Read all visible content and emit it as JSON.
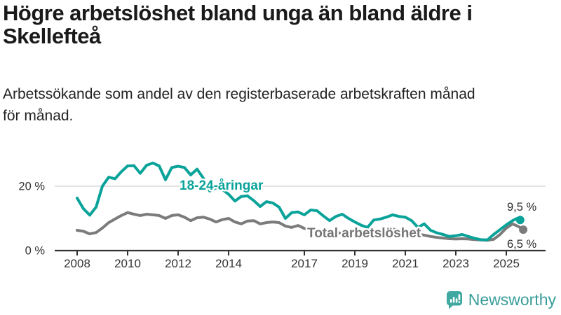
{
  "header": {
    "title_lines": [
      "Högre arbetslöshet bland unga än bland äldre i",
      "Skellefteå"
    ],
    "subtitle_lines": [
      "Arbetssökande som andel av den registerbaserade arbetskraften månad",
      "för månad."
    ]
  },
  "chart_data": {
    "type": "line",
    "unit": "%",
    "title": "Högre arbetslöshet bland unga än bland äldre i Skellefteå",
    "subtitle": "Arbetssökande som andel av den registerbaserade arbetskraften månad för månad.",
    "grid": "y-20-only",
    "legend": "inline-series-labels",
    "x_axis": {
      "range": [
        2007.1,
        2026.5
      ],
      "ticks": [
        2008,
        2010,
        2012,
        2014,
        2017,
        2019,
        2021,
        2023,
        2025
      ],
      "tick_labels": [
        "2008",
        "2010",
        "2012",
        "2014",
        "2017",
        "2019",
        "2021",
        "2023",
        "2025"
      ]
    },
    "y_axis": {
      "range": [
        0,
        30
      ],
      "ticks": [
        0,
        20
      ],
      "tick_labels": [
        "0 %",
        "20 %"
      ],
      "gridline_at": 20
    },
    "axis_color": "#333333",
    "grid_color": "#d9d9d9",
    "series": [
      {
        "name": "18-24-åringar",
        "color": "#09a39a",
        "end_label": "9,5 %",
        "end_value": 9.5,
        "x": [
          2008.0,
          2008.25,
          2008.5,
          2008.75,
          2009.0,
          2009.25,
          2009.5,
          2009.75,
          2010.0,
          2010.25,
          2010.5,
          2010.75,
          2011.0,
          2011.25,
          2011.5,
          2011.75,
          2012.0,
          2012.25,
          2012.5,
          2012.75,
          2013.0,
          2013.25,
          2013.5,
          2013.75,
          2014.0,
          2014.25,
          2014.5,
          2014.75,
          2015.0,
          2015.25,
          2015.5,
          2015.75,
          2016.0,
          2016.25,
          2016.5,
          2016.75,
          2017.0,
          2017.25,
          2017.5,
          2017.75,
          2018.0,
          2018.25,
          2018.5,
          2018.75,
          2019.0,
          2019.25,
          2019.5,
          2019.75,
          2020.0,
          2020.25,
          2020.5,
          2020.75,
          2021.0,
          2021.25,
          2021.5,
          2021.75,
          2022.0,
          2022.25,
          2022.5,
          2022.75,
          2023.0,
          2023.25,
          2023.5,
          2023.75,
          2024.0,
          2024.25,
          2024.5,
          2024.75,
          2025.0,
          2025.25,
          2025.42,
          2025.55
        ],
        "values": [
          16.3,
          13.0,
          11.0,
          13.5,
          20.0,
          22.8,
          22.3,
          24.5,
          26.3,
          26.4,
          24.0,
          26.5,
          27.2,
          26.3,
          22.0,
          25.8,
          26.2,
          25.8,
          23.5,
          25.3,
          22.5,
          18.5,
          19.5,
          19.0,
          17.5,
          15.4,
          16.8,
          17.0,
          15.5,
          13.7,
          15.2,
          14.8,
          13.5,
          10.0,
          11.8,
          12.0,
          11.1,
          12.6,
          12.4,
          10.8,
          9.3,
          10.6,
          11.3,
          10.0,
          8.9,
          7.9,
          7.2,
          9.5,
          9.8,
          10.4,
          11.1,
          10.6,
          10.4,
          9.3,
          7.2,
          8.3,
          6.3,
          5.5,
          5.0,
          4.4,
          4.6,
          5.0,
          4.4,
          3.8,
          3.4,
          3.3,
          5.0,
          6.5,
          8.0,
          9.3,
          10.0,
          9.5
        ]
      },
      {
        "name": "Total arbetslöshet",
        "color": "#7b7b7b",
        "end_label": "6,5 %",
        "end_value": 6.5,
        "x": [
          2008.0,
          2008.25,
          2008.5,
          2008.75,
          2009.0,
          2009.25,
          2009.5,
          2009.75,
          2010.0,
          2010.25,
          2010.5,
          2010.75,
          2011.0,
          2011.25,
          2011.5,
          2011.75,
          2012.0,
          2012.25,
          2012.5,
          2012.75,
          2013.0,
          2013.25,
          2013.5,
          2013.75,
          2014.0,
          2014.25,
          2014.5,
          2014.75,
          2015.0,
          2015.25,
          2015.5,
          2015.75,
          2016.0,
          2016.25,
          2016.5,
          2016.75,
          2017.0,
          2017.25,
          2017.5,
          2017.75,
          2018.0,
          2018.25,
          2018.5,
          2018.75,
          2019.0,
          2019.25,
          2019.5,
          2019.75,
          2020.0,
          2020.25,
          2020.5,
          2020.75,
          2021.0,
          2021.25,
          2021.5,
          2021.75,
          2022.0,
          2022.25,
          2022.5,
          2022.75,
          2023.0,
          2023.25,
          2023.5,
          2023.75,
          2024.0,
          2024.25,
          2024.5,
          2024.75,
          2025.0,
          2025.25,
          2025.5,
          2025.67
        ],
        "values": [
          6.3,
          6.0,
          5.2,
          5.6,
          7.0,
          8.7,
          9.8,
          10.9,
          11.8,
          11.3,
          10.9,
          11.3,
          11.1,
          10.9,
          10.0,
          10.9,
          11.1,
          10.4,
          9.3,
          10.2,
          10.4,
          9.8,
          8.9,
          9.6,
          10.0,
          8.9,
          8.3,
          9.2,
          9.3,
          8.3,
          8.7,
          8.9,
          8.7,
          7.6,
          7.2,
          7.8,
          6.9,
          6.5,
          6.1,
          6.3,
          6.0,
          5.6,
          5.4,
          5.6,
          5.4,
          5.0,
          4.8,
          5.2,
          5.6,
          6.5,
          6.7,
          6.3,
          6.1,
          5.6,
          5.0,
          4.8,
          4.4,
          4.1,
          3.9,
          3.7,
          3.6,
          3.7,
          3.6,
          3.4,
          3.3,
          3.2,
          3.5,
          5.0,
          7.0,
          8.3,
          7.4,
          6.5
        ]
      }
    ]
  },
  "footer": {
    "brand": "Newsworthy"
  }
}
